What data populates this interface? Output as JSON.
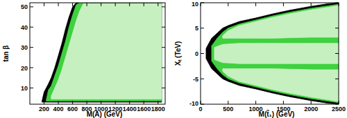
{
  "chart_data": [
    {
      "type": "area",
      "xlabel": "M(A) (GeV)",
      "ylabel": "tan β",
      "xlim": [
        0,
        1900
      ],
      "ylim": [
        2,
        52
      ],
      "xticks": [
        200,
        400,
        600,
        800,
        1000,
        1200,
        1400,
        1600,
        1800
      ],
      "yticks": [
        10,
        20,
        30,
        40,
        50
      ],
      "series": [
        {
          "color": "#000000",
          "x": [
            170,
            200,
            230,
            260,
            300,
            350,
            400,
            450,
            500,
            550,
            600,
            650,
            1850
          ],
          "values": [
            3.5,
            8,
            10,
            12,
            15,
            20,
            26,
            32,
            39,
            45,
            50,
            52,
            52
          ],
          "lower": [
            3,
            3,
            3,
            3,
            3,
            3,
            3,
            3,
            3,
            3,
            3,
            3,
            3
          ]
        },
        {
          "color": "#3fd13f",
          "x": [
            230,
            260,
            300,
            350,
            400,
            450,
            500,
            550,
            600,
            650,
            700,
            1850
          ],
          "values": [
            4,
            9,
            11,
            16,
            21,
            27,
            33,
            40,
            46,
            51,
            52,
            52
          ],
          "lower": [
            3.5,
            3.5,
            3.5,
            3.5,
            3.5,
            3.5,
            3.5,
            3.5,
            3.5,
            3.5,
            3.5,
            3.5
          ]
        },
        {
          "color": "#c6f0c0",
          "x": [
            300,
            350,
            400,
            450,
            500,
            550,
            600,
            650,
            700,
            750,
            1850
          ],
          "values": [
            6,
            10,
            14,
            19,
            25,
            31,
            37,
            43,
            48,
            51.5,
            51.5
          ],
          "lower": [
            4.5,
            4.5,
            4.5,
            4.5,
            4.5,
            4.5,
            4.5,
            4.5,
            4.5,
            4.5,
            4.5
          ]
        }
      ]
    },
    {
      "type": "area",
      "xlabel": "M(t̃₁) (GeV)",
      "ylabel": "Xₜ (TeV)",
      "xlim": [
        0,
        2500
      ],
      "ylim": [
        -10,
        10
      ],
      "xticks": [
        0,
        500,
        1000,
        1500,
        2000,
        2500
      ],
      "yticks": [
        -10,
        -5,
        0,
        5,
        10
      ],
      "series": [
        {
          "color": "#000000",
          "x": [
            100,
            150,
            200,
            300,
            400,
            500,
            700,
            1000,
            1300,
            1600,
            2000,
            2300,
            2500
          ],
          "values": [
            1,
            2,
            3,
            4,
            5,
            5.5,
            6.3,
            7,
            7.8,
            8.5,
            9.3,
            9.8,
            10
          ],
          "lower": [
            -1,
            -2,
            -3,
            -4,
            -5,
            -5.5,
            -6.3,
            -7,
            -7.8,
            -8.5,
            -9.3,
            -9.8,
            -10
          ]
        },
        {
          "color": "#3fd13f",
          "x": [
            200,
            300,
            400,
            500,
            700,
            1000,
            1300,
            1600,
            2000,
            2300,
            2500
          ],
          "values": [
            1.5,
            3,
            4.2,
            5,
            5.8,
            6.6,
            7.4,
            8.1,
            8.9,
            9.4,
            9.7
          ],
          "lower": [
            -1.5,
            -3,
            -4.2,
            -5,
            -5.8,
            -6.6,
            -7.4,
            -8.1,
            -8.9,
            -9.4,
            -9.7
          ]
        },
        {
          "color": "#c6f0c0",
          "x": [
            400,
            500,
            700,
            1000,
            1300,
            1600,
            2000,
            2300,
            2500
          ],
          "values": [
            3.5,
            4.5,
            5.5,
            6.3,
            7.1,
            7.8,
            8.6,
            9.1,
            9.5
          ],
          "lower": [
            3,
            3,
            3,
            3,
            3,
            3.1,
            3.2,
            3.2,
            3.2
          ]
        },
        {
          "color": "#c6f0c0",
          "x": [
            250,
            400,
            700,
            1000,
            1500,
            2000,
            2500
          ],
          "values": [
            1.2,
            1.8,
            2,
            2,
            2,
            2,
            2
          ],
          "lower": [
            -1.2,
            -1.8,
            -2,
            -2,
            -2,
            -2,
            -2
          ]
        },
        {
          "color": "#c6f0c0",
          "x": [
            400,
            500,
            700,
            1000,
            1300,
            1600,
            2000,
            2300,
            2500
          ],
          "values": [
            -3,
            -3,
            -3,
            -3,
            -3,
            -3.1,
            -3.2,
            -3.2,
            -3.2
          ],
          "lower": [
            -3.5,
            -4.5,
            -5.5,
            -6.3,
            -7.1,
            -7.8,
            -8.6,
            -9.1,
            -9.5
          ]
        }
      ]
    }
  ]
}
